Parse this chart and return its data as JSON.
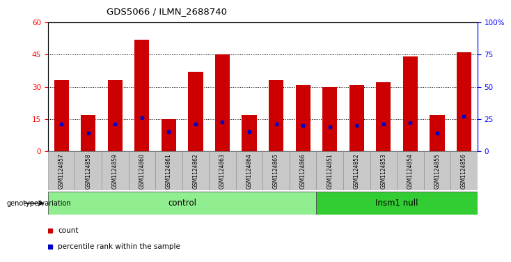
{
  "title": "GDS5066 / ILMN_2688740",
  "samples": [
    "GSM1124857",
    "GSM1124858",
    "GSM1124859",
    "GSM1124860",
    "GSM1124861",
    "GSM1124862",
    "GSM1124863",
    "GSM1124864",
    "GSM1124865",
    "GSM1124866",
    "GSM1124851",
    "GSM1124852",
    "GSM1124853",
    "GSM1124854",
    "GSM1124855",
    "GSM1124856"
  ],
  "counts": [
    33,
    17,
    33,
    52,
    15,
    37,
    45,
    17,
    33,
    31,
    30,
    31,
    32,
    44,
    17,
    46
  ],
  "percentile_ranks": [
    21,
    14,
    21,
    26,
    15,
    21,
    23,
    15,
    21,
    20,
    19,
    20,
    21,
    22,
    14,
    27
  ],
  "bar_color": "#cc0000",
  "marker_color": "#0000cc",
  "ylim_left": [
    0,
    60
  ],
  "ylim_right": [
    0,
    100
  ],
  "yticks_left": [
    0,
    15,
    30,
    45,
    60
  ],
  "yticks_right": [
    0,
    25,
    50,
    75,
    100
  ],
  "ytick_labels_right": [
    "0",
    "25",
    "50",
    "75",
    "100%"
  ],
  "control_label": "control",
  "insm1_label": "Insm1 null",
  "control_bg": "#90ee90",
  "insm1_bg": "#32cd32",
  "label_bg": "#c8c8c8",
  "genotype_label": "genotype/variation",
  "bar_width": 0.55,
  "legend_count": "count",
  "legend_pct": "percentile rank within the sample",
  "n_control": 10,
  "n_insm1": 6
}
